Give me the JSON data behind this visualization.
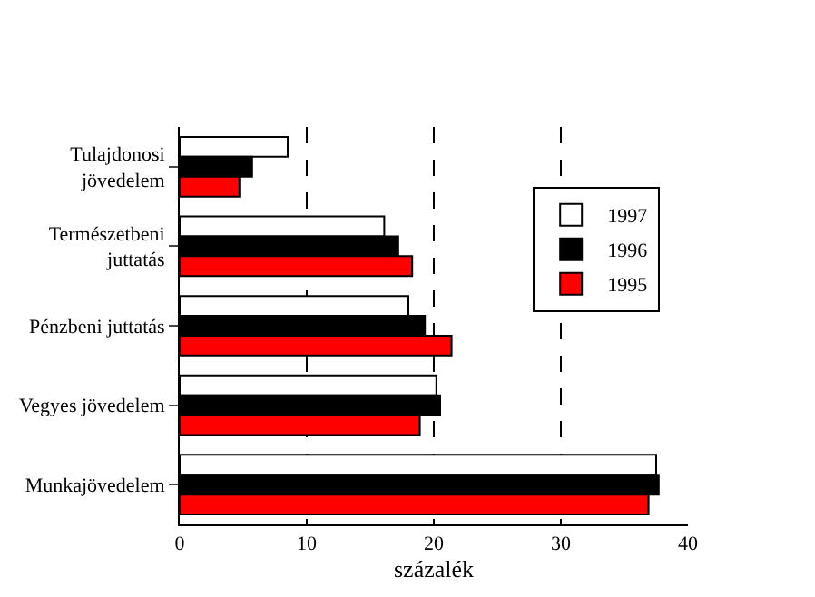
{
  "chart_data": {
    "type": "bar",
    "orientation": "horizontal",
    "xlabel": "százalék",
    "categories": [
      "Tulajdonosi\njövedelem",
      "Természetbeni\njuttatás",
      "Pénzbeni juttatás",
      "Vegyes jövedelem",
      "Munkajövedelem"
    ],
    "series": [
      {
        "name": "1997",
        "color": "#ffffff",
        "values": [
          8.5,
          16.1,
          18.0,
          20.2,
          37.5
        ]
      },
      {
        "name": "1996",
        "color": "#000000",
        "values": [
          5.7,
          17.2,
          19.3,
          20.5,
          37.7
        ]
      },
      {
        "name": "1995",
        "color": "#ff0000",
        "values": [
          4.7,
          18.3,
          21.4,
          18.9,
          36.9
        ]
      }
    ],
    "xlim": [
      0,
      40
    ],
    "xticks": [
      0,
      10,
      20,
      30,
      40
    ],
    "grid": "x",
    "legend": "top right"
  }
}
